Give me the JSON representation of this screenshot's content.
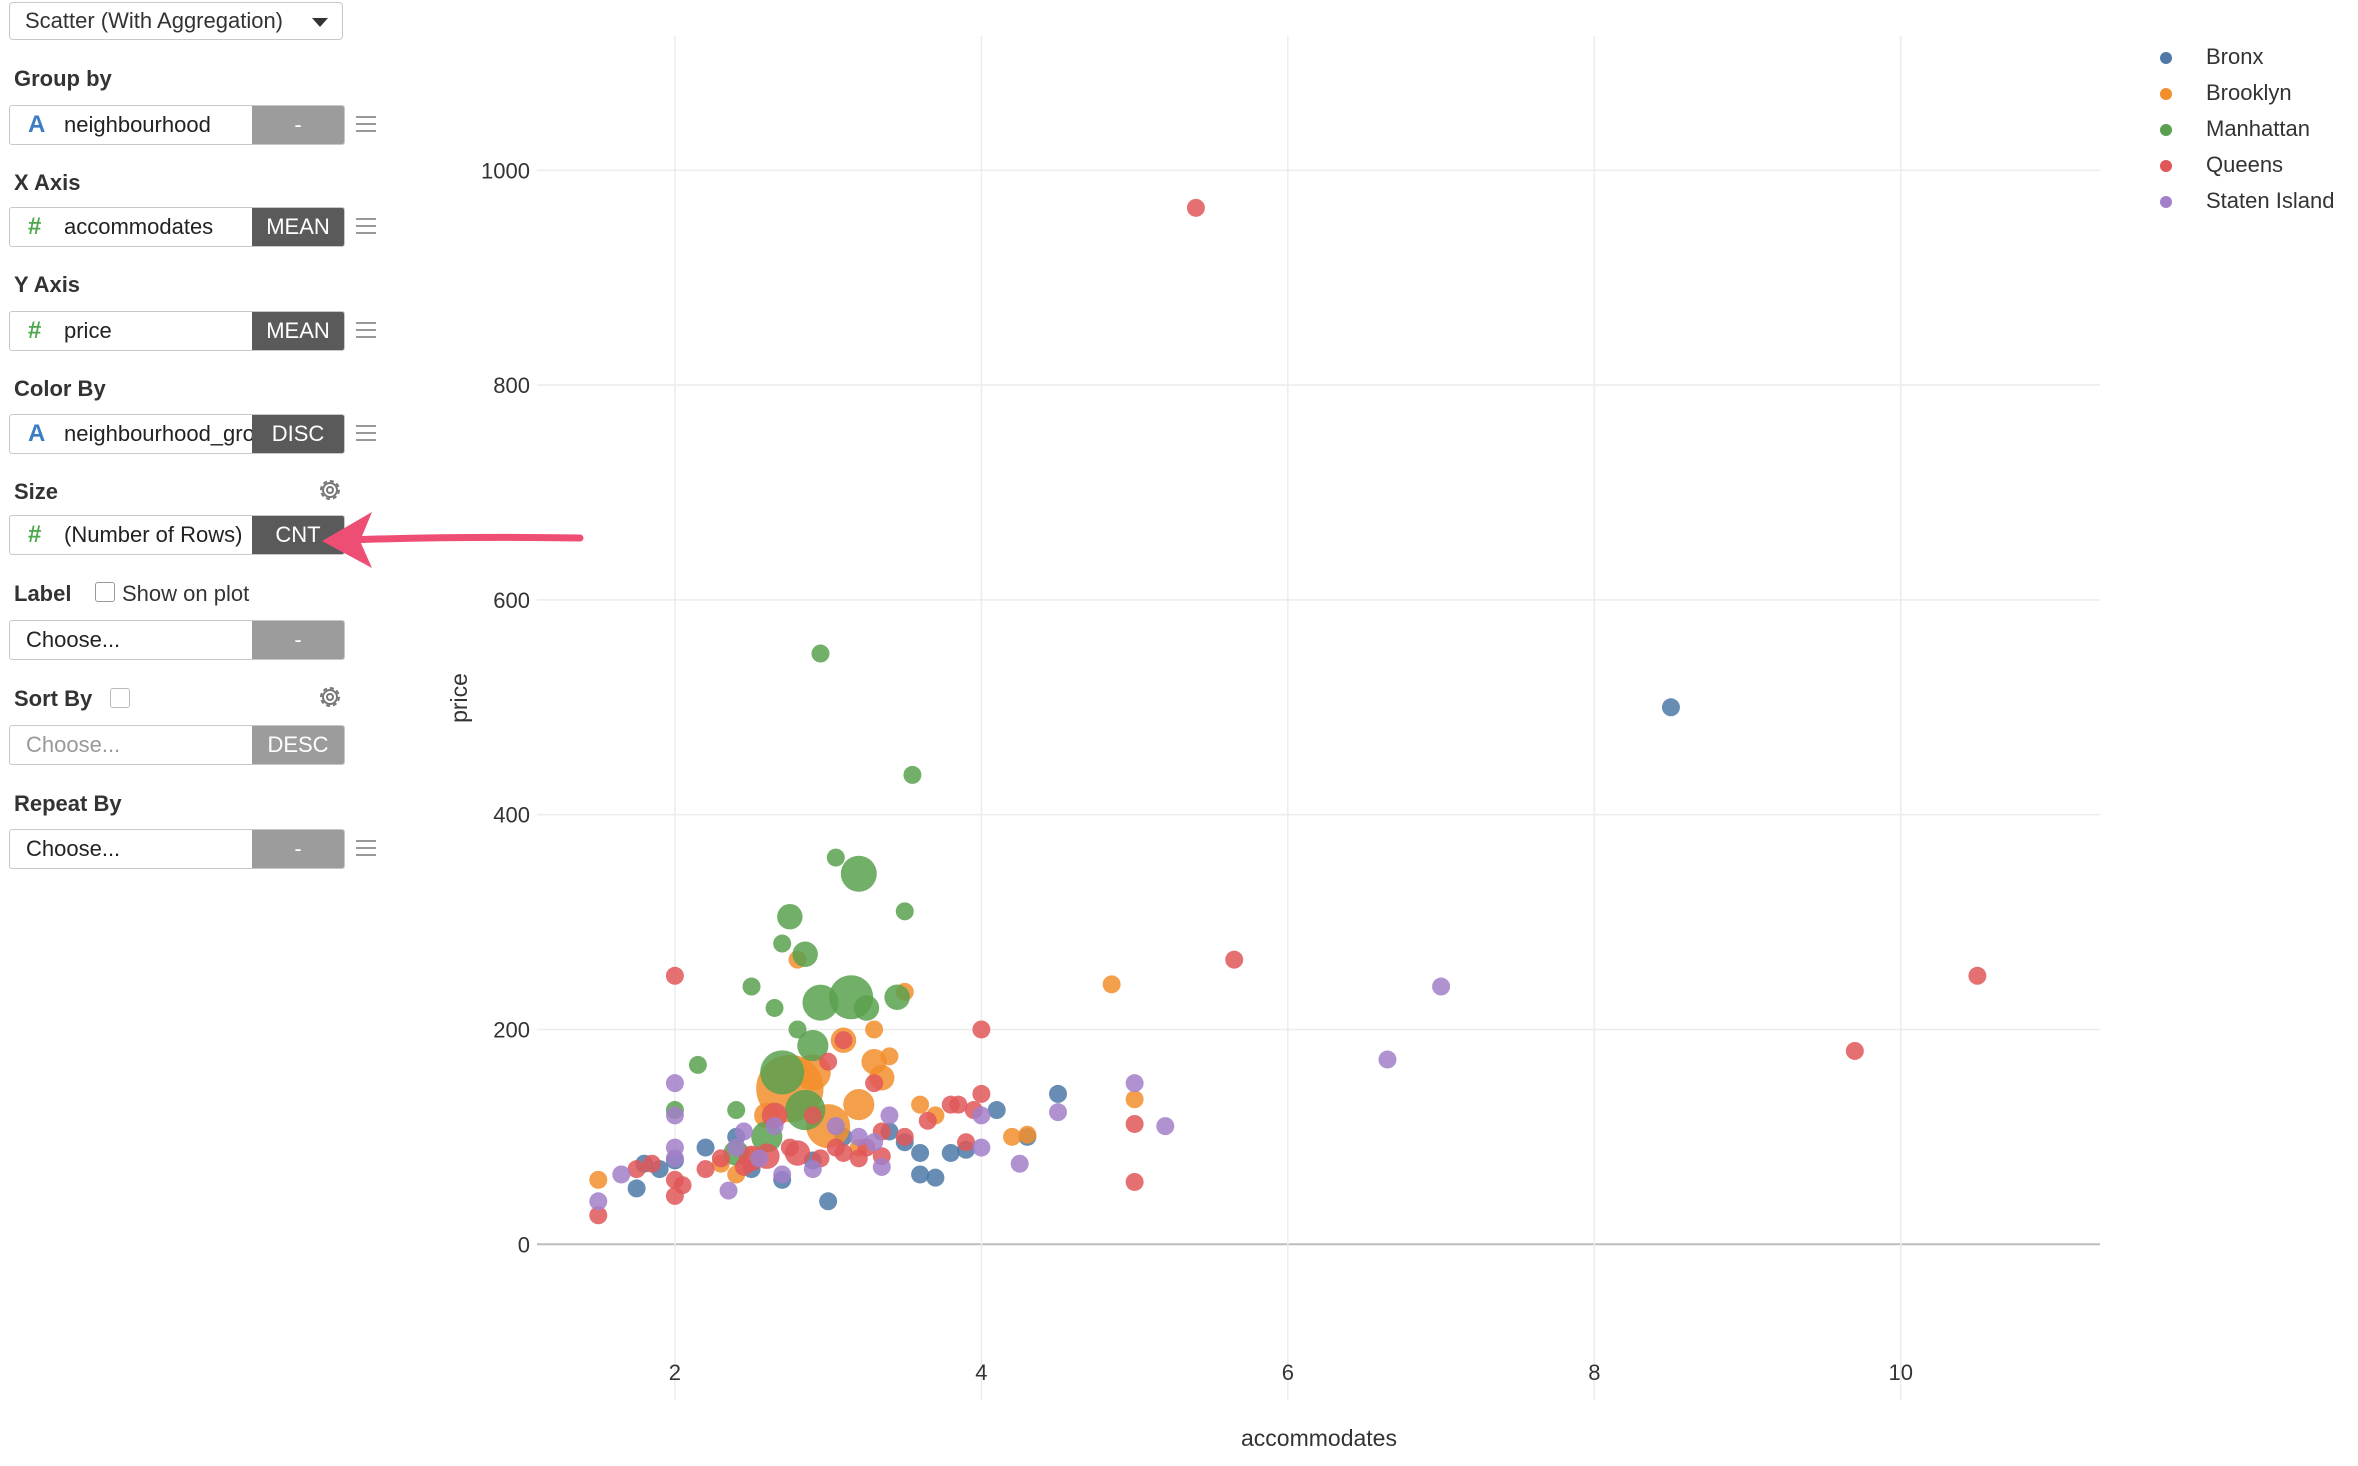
{
  "chart_type_select": {
    "value": "Scatter (With Aggregation)"
  },
  "sections": {
    "group_by": {
      "label": "Group by",
      "icon": "string-type-icon",
      "field": "neighbourhood",
      "button": "-"
    },
    "x_axis": {
      "label": "X Axis",
      "icon": "number-type-icon",
      "field": "accommodates",
      "button": "MEAN"
    },
    "y_axis": {
      "label": "Y Axis",
      "icon": "number-type-icon",
      "field": "price",
      "button": "MEAN"
    },
    "color_by": {
      "label": "Color By",
      "icon": "string-type-icon",
      "field": "neighbourhood_group",
      "button": "DISC"
    },
    "size": {
      "label": "Size",
      "icon": "number-type-icon",
      "field": "(Number of Rows)",
      "button": "CNT"
    },
    "label": {
      "label": "Label",
      "checkbox_label": "Show on plot",
      "field": "Choose...",
      "button": "-"
    },
    "sort_by": {
      "label": "Sort By",
      "placeholder": "Choose...",
      "button": "DESC"
    },
    "repeat_by": {
      "label": "Repeat By",
      "field": "Choose...",
      "button": "-"
    }
  },
  "chart_data": {
    "type": "scatter",
    "title": "",
    "xlabel": "accommodates",
    "ylabel": "price",
    "xlim": [
      1.1,
      11.3
    ],
    "ylim": [
      -145,
      1125
    ],
    "x_ticks": [
      2,
      4,
      6,
      8,
      10
    ],
    "y_ticks": [
      0,
      200,
      400,
      600,
      800,
      1000
    ],
    "grid": true,
    "legend_position": "top-right",
    "colors": {
      "Bronx": "#4e79a7",
      "Brooklyn": "#f28e2b",
      "Manhattan": "#59a14f",
      "Queens": "#e15759",
      "Staten Island": "#a27fc9"
    },
    "series": [
      {
        "name": "Bronx",
        "points": [
          [
            8.5,
            500,
            1
          ],
          [
            4.5,
            140,
            1
          ],
          [
            4.1,
            125,
            1
          ],
          [
            4.3,
            100,
            1
          ],
          [
            3.9,
            88,
            1
          ],
          [
            3.6,
            85,
            1
          ],
          [
            3.5,
            95,
            1
          ],
          [
            3.6,
            65,
            1
          ],
          [
            3.7,
            62,
            1
          ],
          [
            3.0,
            40,
            1
          ],
          [
            2.2,
            90,
            1
          ],
          [
            2.4,
            100,
            1
          ],
          [
            2.5,
            70,
            1
          ],
          [
            2.0,
            78,
            1
          ],
          [
            1.8,
            75,
            1
          ],
          [
            1.9,
            70,
            1
          ],
          [
            2.7,
            60,
            1
          ],
          [
            2.9,
            78,
            1
          ],
          [
            1.75,
            52,
            1
          ],
          [
            3.8,
            85,
            1
          ],
          [
            3.1,
            100,
            1
          ],
          [
            3.4,
            105,
            1
          ]
        ]
      },
      {
        "name": "Brooklyn",
        "points": [
          [
            2.75,
            145,
            14
          ],
          [
            3.0,
            110,
            6
          ],
          [
            2.9,
            160,
            4
          ],
          [
            3.2,
            130,
            3
          ],
          [
            3.3,
            170,
            2
          ],
          [
            3.35,
            155,
            2
          ],
          [
            3.5,
            235,
            1
          ],
          [
            3.3,
            200,
            1
          ],
          [
            3.1,
            190,
            2
          ],
          [
            2.8,
            265,
            1
          ],
          [
            3.6,
            130,
            1
          ],
          [
            3.7,
            120,
            1
          ],
          [
            4.85,
            242,
            1
          ],
          [
            5.0,
            135,
            1
          ],
          [
            4.2,
            100,
            1
          ],
          [
            4.3,
            102,
            1
          ],
          [
            2.4,
            65,
            1
          ],
          [
            2.5,
            82,
            1
          ],
          [
            2.6,
            120,
            2
          ],
          [
            3.2,
            90,
            1
          ],
          [
            1.5,
            60,
            1
          ],
          [
            2.3,
            75,
            1
          ],
          [
            3.4,
            175,
            1
          ]
        ]
      },
      {
        "name": "Manhattan",
        "points": [
          [
            2.95,
            550,
            1
          ],
          [
            3.55,
            437,
            1
          ],
          [
            3.2,
            345,
            4
          ],
          [
            3.05,
            360,
            1
          ],
          [
            3.5,
            310,
            1
          ],
          [
            2.75,
            305,
            2
          ],
          [
            2.85,
            270,
            2
          ],
          [
            2.7,
            280,
            1
          ],
          [
            3.15,
            230,
            6
          ],
          [
            2.95,
            225,
            4
          ],
          [
            3.45,
            230,
            2
          ],
          [
            3.25,
            220,
            2
          ],
          [
            2.7,
            160,
            6
          ],
          [
            2.9,
            185,
            3
          ],
          [
            2.85,
            125,
            5
          ],
          [
            2.6,
            100,
            3
          ],
          [
            2.4,
            85,
            2
          ],
          [
            2.5,
            240,
            1
          ],
          [
            2.65,
            220,
            1
          ],
          [
            2.8,
            200,
            1
          ],
          [
            2.15,
            167,
            1
          ],
          [
            2.4,
            125,
            1
          ],
          [
            2.0,
            125,
            1
          ]
        ]
      },
      {
        "name": "Queens",
        "points": [
          [
            5.4,
            965,
            1
          ],
          [
            5.65,
            265,
            1
          ],
          [
            10.5,
            250,
            1
          ],
          [
            9.7,
            180,
            1
          ],
          [
            2.0,
            250,
            1
          ],
          [
            4.0,
            200,
            1
          ],
          [
            5.0,
            112,
            1
          ],
          [
            5.0,
            58,
            1
          ],
          [
            3.1,
            190,
            1
          ],
          [
            3.0,
            170,
            1
          ],
          [
            2.65,
            120,
            2
          ],
          [
            2.9,
            120,
            1
          ],
          [
            3.3,
            150,
            1
          ],
          [
            3.35,
            105,
            1
          ],
          [
            3.5,
            100,
            1
          ],
          [
            3.8,
            130,
            1
          ],
          [
            3.85,
            130,
            1
          ],
          [
            3.9,
            95,
            1
          ],
          [
            3.95,
            125,
            1
          ],
          [
            4.0,
            140,
            1
          ],
          [
            2.6,
            82,
            2
          ],
          [
            2.5,
            80,
            2
          ],
          [
            2.75,
            90,
            1
          ],
          [
            2.8,
            85,
            2
          ],
          [
            3.25,
            90,
            1
          ],
          [
            3.2,
            80,
            1
          ],
          [
            3.1,
            85,
            1
          ],
          [
            3.35,
            82,
            1
          ],
          [
            2.2,
            70,
            1
          ],
          [
            2.3,
            80,
            1
          ],
          [
            2.0,
            60,
            1
          ],
          [
            2.05,
            55,
            1
          ],
          [
            1.85,
            75,
            1
          ],
          [
            1.75,
            70,
            1
          ],
          [
            1.5,
            27,
            1
          ],
          [
            2.0,
            45,
            1
          ],
          [
            2.45,
            72,
            1
          ],
          [
            2.95,
            80,
            1
          ],
          [
            3.05,
            90,
            1
          ],
          [
            3.65,
            115,
            1
          ]
        ]
      },
      {
        "name": "Staten Island",
        "points": [
          [
            7.0,
            240,
            1
          ],
          [
            6.65,
            172,
            1
          ],
          [
            5.0,
            150,
            1
          ],
          [
            5.2,
            110,
            1
          ],
          [
            4.5,
            123,
            1
          ],
          [
            4.25,
            75,
            1
          ],
          [
            4.0,
            90,
            1
          ],
          [
            4.0,
            120,
            1
          ],
          [
            2.0,
            150,
            1
          ],
          [
            2.0,
            120,
            1
          ],
          [
            2.0,
            90,
            1
          ],
          [
            2.0,
            80,
            1
          ],
          [
            1.5,
            40,
            1
          ],
          [
            1.65,
            65,
            1
          ],
          [
            2.35,
            50,
            1
          ],
          [
            2.4,
            90,
            1
          ],
          [
            2.55,
            80,
            1
          ],
          [
            2.7,
            65,
            1
          ],
          [
            2.9,
            70,
            1
          ],
          [
            3.05,
            110,
            1
          ],
          [
            3.2,
            100,
            1
          ],
          [
            3.3,
            95,
            1
          ],
          [
            3.35,
            72,
            1
          ],
          [
            3.4,
            120,
            1
          ],
          [
            2.65,
            110,
            1
          ],
          [
            2.45,
            105,
            1
          ]
        ]
      }
    ]
  }
}
